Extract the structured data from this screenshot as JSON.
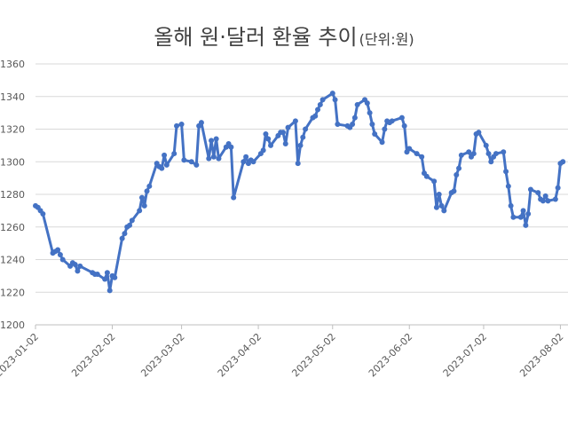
{
  "chart_data": {
    "type": "line",
    "title": "올해 원·달러 환율 추이",
    "subtitle": "(단위:원)",
    "x": [
      "2023-01-02",
      "2023-01-03",
      "2023-01-04",
      "2023-01-05",
      "2023-01-09",
      "2023-01-10",
      "2023-01-11",
      "2023-01-12",
      "2023-01-13",
      "2023-01-16",
      "2023-01-17",
      "2023-01-18",
      "2023-01-19",
      "2023-01-20",
      "2023-01-25",
      "2023-01-26",
      "2023-01-27",
      "2023-01-30",
      "2023-01-31",
      "2023-02-01",
      "2023-02-02",
      "2023-02-03",
      "2023-02-06",
      "2023-02-07",
      "2023-02-08",
      "2023-02-09",
      "2023-02-10",
      "2023-02-13",
      "2023-02-14",
      "2023-02-15",
      "2023-02-16",
      "2023-02-17",
      "2023-02-20",
      "2023-02-21",
      "2023-02-22",
      "2023-02-23",
      "2023-02-24",
      "2023-02-27",
      "2023-02-28",
      "2023-03-02",
      "2023-03-03",
      "2023-03-06",
      "2023-03-08",
      "2023-03-09",
      "2023-03-10",
      "2023-03-13",
      "2023-03-14",
      "2023-03-15",
      "2023-03-16",
      "2023-03-17",
      "2023-03-20",
      "2023-03-21",
      "2023-03-22",
      "2023-03-23",
      "2023-03-27",
      "2023-03-28",
      "2023-03-29",
      "2023-03-30",
      "2023-03-31",
      "2023-04-03",
      "2023-04-04",
      "2023-04-05",
      "2023-04-06",
      "2023-04-07",
      "2023-04-10",
      "2023-04-11",
      "2023-04-12",
      "2023-04-13",
      "2023-04-14",
      "2023-04-17",
      "2023-04-18",
      "2023-04-19",
      "2023-04-20",
      "2023-04-21",
      "2023-04-24",
      "2023-04-25",
      "2023-04-26",
      "2023-04-27",
      "2023-04-28",
      "2023-05-02",
      "2023-05-03",
      "2023-05-04",
      "2023-05-08",
      "2023-05-09",
      "2023-05-10",
      "2023-05-11",
      "2023-05-12",
      "2023-05-15",
      "2023-05-16",
      "2023-05-17",
      "2023-05-18",
      "2023-05-19",
      "2023-05-22",
      "2023-05-23",
      "2023-05-24",
      "2023-05-25",
      "2023-05-26",
      "2023-05-30",
      "2023-05-31",
      "2023-06-01",
      "2023-06-02",
      "2023-06-05",
      "2023-06-07",
      "2023-06-08",
      "2023-06-09",
      "2023-06-12",
      "2023-06-13",
      "2023-06-14",
      "2023-06-15",
      "2023-06-16",
      "2023-06-19",
      "2023-06-20",
      "2023-06-21",
      "2023-06-22",
      "2023-06-23",
      "2023-06-26",
      "2023-06-27",
      "2023-06-28",
      "2023-06-29",
      "2023-06-30",
      "2023-07-03",
      "2023-07-04",
      "2023-07-05",
      "2023-07-06",
      "2023-07-07",
      "2023-07-10",
      "2023-07-11",
      "2023-07-12",
      "2023-07-13",
      "2023-07-14",
      "2023-07-17",
      "2023-07-18",
      "2023-07-19",
      "2023-07-20",
      "2023-07-21",
      "2023-07-24",
      "2023-07-25",
      "2023-07-26",
      "2023-07-27",
      "2023-07-28",
      "2023-07-31",
      "2023-08-01",
      "2023-08-02",
      "2023-08-03"
    ],
    "values": [
      1273,
      1272,
      1270,
      1268,
      1244,
      1245,
      1246,
      1243,
      1240,
      1236,
      1238,
      1237,
      1233,
      1236,
      1232,
      1231,
      1231,
      1228,
      1232,
      1221,
      1230,
      1229,
      1253,
      1256,
      1260,
      1261,
      1264,
      1270,
      1278,
      1273,
      1282,
      1285,
      1299,
      1297,
      1296,
      1304,
      1298,
      1305,
      1322,
      1323,
      1301,
      1300,
      1298,
      1322,
      1324,
      1302,
      1313,
      1303,
      1314,
      1302,
      1309,
      1311,
      1309,
      1278,
      1300,
      1303,
      1299,
      1301,
      1300,
      1305,
      1307,
      1317,
      1314,
      1310,
      1316,
      1318,
      1318,
      1311,
      1321,
      1325,
      1299,
      1310,
      1315,
      1320,
      1327,
      1328,
      1332,
      1335,
      1338,
      1342,
      1338,
      1323,
      1322,
      1321,
      1323,
      1327,
      1335,
      1338,
      1336,
      1330,
      1323,
      1317,
      1312,
      1320,
      1325,
      1324,
      1325,
      1327,
      1322,
      1306,
      1308,
      1305,
      1303,
      1293,
      1291,
      1288,
      1272,
      1280,
      1273,
      1270,
      1281,
      1282,
      1292,
      1296,
      1304,
      1306,
      1303,
      1305,
      1317,
      1318,
      1310,
      1305,
      1300,
      1303,
      1305,
      1306,
      1294,
      1285,
      1273,
      1266,
      1266,
      1270,
      1261,
      1268,
      1283,
      1281,
      1277,
      1276,
      1279,
      1276,
      1277,
      1284,
      1299,
      1300
    ],
    "color": "#4472c4",
    "xlim": [
      "2023-01-02",
      "2023-08-04"
    ],
    "xticks": [
      "2023-01-02",
      "2023-02-02",
      "2023-03-02",
      "2023-04-02",
      "2023-05-02",
      "2023-06-02",
      "2023-07-02",
      "2023-08-02"
    ],
    "ylim": [
      1200,
      1360
    ],
    "yticks": [
      1200,
      1220,
      1240,
      1260,
      1280,
      1300,
      1320,
      1340,
      1360
    ],
    "grid": true
  }
}
